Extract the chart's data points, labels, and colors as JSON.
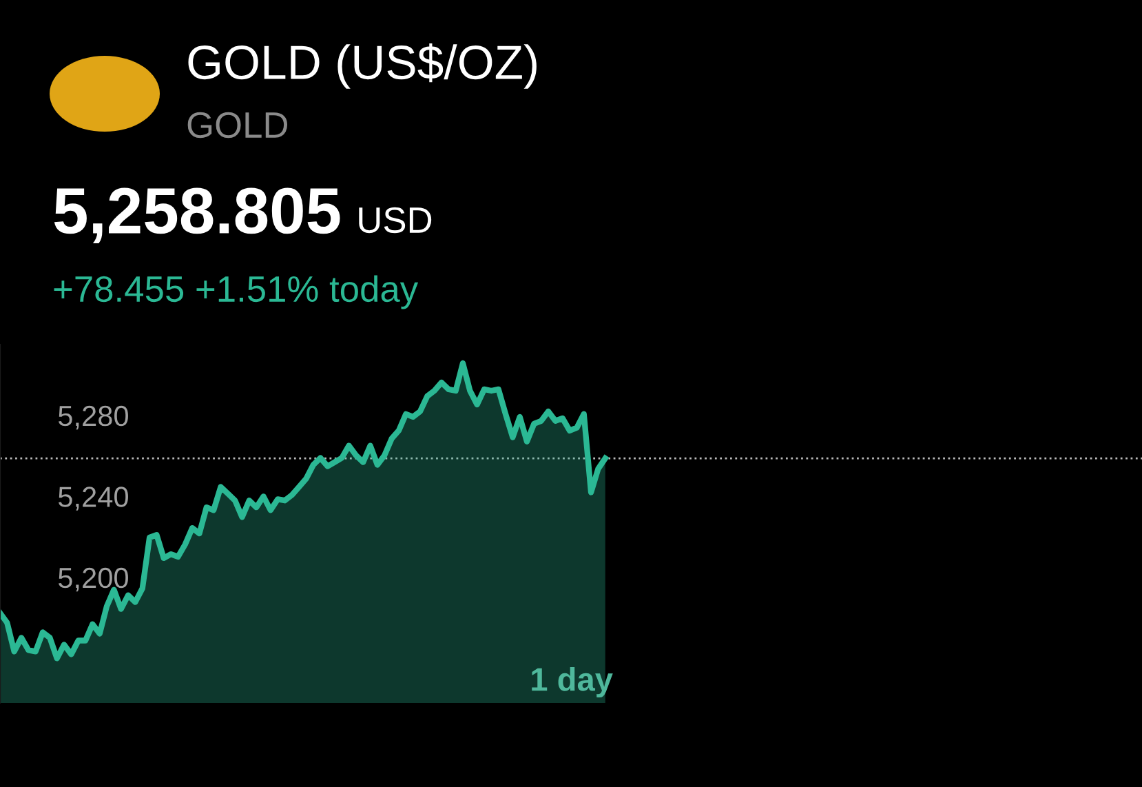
{
  "chart_data": {
    "type": "area",
    "title": "GOLD (US$/OZ)",
    "subtitle": "GOLD",
    "annotations": [
      "5,258.805",
      "USD",
      "+78.455 +1.51% today",
      "1 day"
    ],
    "categories": [
      null,
      null,
      null,
      null,
      null,
      null,
      null,
      null,
      null,
      null,
      null,
      null,
      null,
      null,
      null,
      null,
      null,
      null,
      null,
      null,
      null,
      null,
      null,
      null,
      null,
      null,
      null,
      null,
      null,
      null,
      null,
      null,
      null,
      null,
      null,
      null,
      null,
      null,
      null,
      null,
      null,
      null,
      null,
      null,
      null,
      null,
      null,
      null,
      null,
      null,
      null,
      null,
      null,
      null,
      null,
      null,
      null,
      null,
      null,
      null,
      null,
      null,
      null,
      null,
      null,
      null,
      null,
      null,
      null,
      null,
      null,
      null,
      null,
      null,
      null,
      null,
      null,
      null,
      null,
      null,
      null,
      null,
      null,
      null,
      null,
      null
    ],
    "series": [
      {
        "color": "#2bb894",
        "values": [
          5182.4,
          5177.6,
          5163.4,
          5170.2,
          5164.1,
          5163.4,
          5172.9,
          5170.2,
          5160.0,
          5166.8,
          5162.0,
          5168.8,
          5168.8,
          5176.9,
          5172.2,
          5185.8,
          5193.9,
          5184.4,
          5191.2,
          5187.8,
          5194.6,
          5219.7,
          5221.0,
          5209.5,
          5211.5,
          5210.2,
          5216.3,
          5224.4,
          5221.7,
          5234.6,
          5233.2,
          5244.7,
          5241.4,
          5238.0,
          5229.8,
          5238.0,
          5234.6,
          5240.0,
          5233.2,
          5238.6,
          5238.0,
          5240.7,
          5244.7,
          5248.8,
          5255.6,
          5259.0,
          5254.9,
          5256.9,
          5259.0,
          5265.1,
          5260.3,
          5256.9,
          5265.1,
          5255.6,
          5260.3,
          5268.5,
          5272.5,
          5280.7,
          5279.3,
          5282.0,
          5289.5,
          5292.2,
          5296.3,
          5292.9,
          5292.2,
          5305.8,
          5292.2,
          5285.4,
          5292.9,
          5292.2,
          5292.9,
          5280.7,
          5269.2,
          5279.3,
          5267.1,
          5275.9,
          5277.3,
          5282.0,
          5277.3,
          5278.6,
          5272.5,
          5273.9,
          5280.7,
          5242.0,
          5253.6,
          5258.8
        ]
      }
    ],
    "ylim": [
      5138,
      5315
    ],
    "yticks": [
      {
        "value": 5200,
        "label": "5,200"
      },
      {
        "value": 5240,
        "label": "5,240"
      },
      {
        "value": 5280,
        "label": "5,280"
      }
    ],
    "tick_labels": "y",
    "grid": false,
    "ref_lines": [
      {
        "axis": "y",
        "value": 5258.805,
        "color": "#bbbbbb",
        "line_style": "dotted"
      }
    ]
  }
}
